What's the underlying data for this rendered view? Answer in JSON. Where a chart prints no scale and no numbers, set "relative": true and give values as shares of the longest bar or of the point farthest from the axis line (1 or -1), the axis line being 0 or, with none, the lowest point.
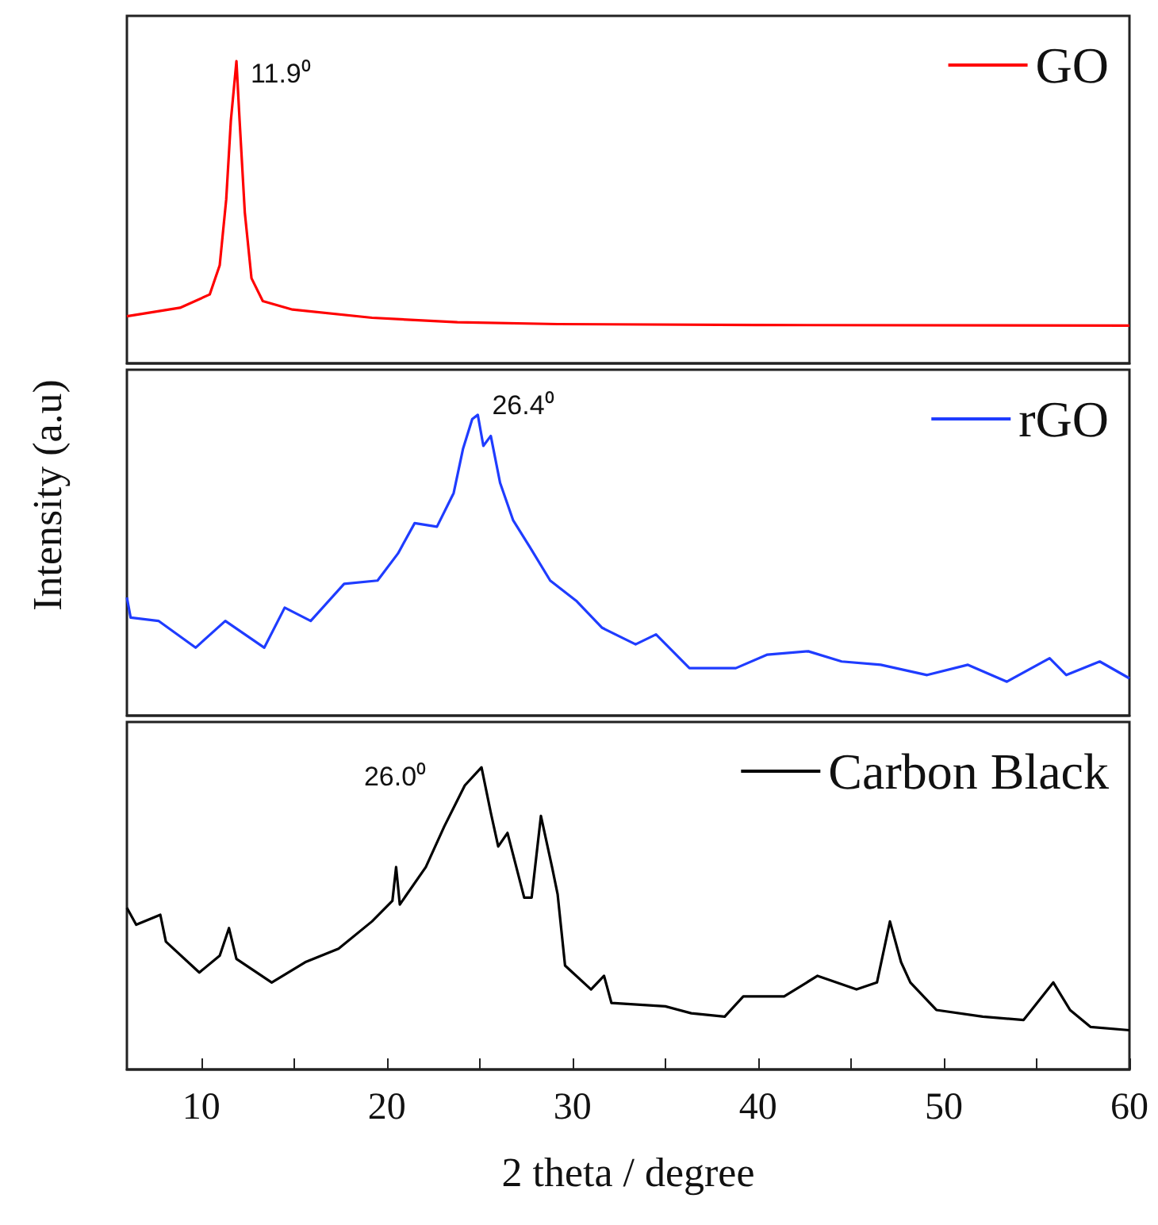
{
  "chart_data": [
    {
      "type": "line",
      "relative": true,
      "xlim": [
        6,
        60
      ],
      "tick_labels": false,
      "legend": "top right",
      "marker": "none",
      "line_style": "solid",
      "series": [
        {
          "name": "GO",
          "color": "#ff0000",
          "x": [
            6.0,
            8.86,
            10.46,
            11.0,
            11.35,
            11.6,
            11.9,
            12.07,
            12.35,
            12.71,
            13.32,
            14.92,
            19.2,
            23.8,
            29.2,
            39.9,
            60
          ],
          "values": [
            0.156,
            0.184,
            0.228,
            0.325,
            0.543,
            0.804,
            1.0,
            0.804,
            0.5,
            0.282,
            0.206,
            0.178,
            0.151,
            0.136,
            0.13,
            0.127,
            0.125
          ]
        }
      ],
      "annotations": [
        {
          "text": "11.9⁰",
          "x": 11.9,
          "y": 1.0
        }
      ]
    },
    {
      "type": "line",
      "relative": true,
      "xlim": [
        6,
        60
      ],
      "tick_labels": false,
      "legend": "top right",
      "marker": "none",
      "line_style": "solid",
      "ylabel": "Intensity (a.u)",
      "series": [
        {
          "name": "rGO",
          "color": "#1f3cff",
          "x": [
            6.0,
            6.2,
            7.7,
            9.7,
            11.3,
            13.4,
            14.5,
            15.9,
            17.7,
            19.5,
            20.6,
            21.5,
            22.7,
            23.6,
            24.1,
            24.6,
            24.9,
            25.2,
            25.6,
            26.1,
            26.8,
            27.7,
            28.8,
            30.2,
            31.6,
            33.4,
            34.5,
            36.3,
            38.8,
            40.5,
            42.7,
            44.5,
            46.6,
            49.1,
            51.3,
            53.4,
            55.7,
            56.6,
            58.4,
            60
          ],
          "values": [
            0.393,
            0.326,
            0.315,
            0.226,
            0.315,
            0.226,
            0.359,
            0.315,
            0.438,
            0.449,
            0.539,
            0.64,
            0.628,
            0.74,
            0.886,
            0.986,
            1.0,
            0.897,
            0.93,
            0.774,
            0.65,
            0.561,
            0.449,
            0.382,
            0.292,
            0.237,
            0.27,
            0.158,
            0.158,
            0.203,
            0.214,
            0.18,
            0.169,
            0.135,
            0.169,
            0.113,
            0.191,
            0.135,
            0.18,
            0.124
          ]
        }
      ],
      "annotations": [
        {
          "text": "26.4⁰",
          "x": 24.9,
          "y": 1.0
        }
      ]
    },
    {
      "type": "line",
      "relative": true,
      "xlim": [
        6,
        60
      ],
      "tick_labels": "x",
      "legend": "top right",
      "marker": "none",
      "line_style": "solid",
      "xlabel": "2 theta / degree",
      "xticks": [
        10,
        {
          "value": 15,
          "label": null
        },
        20,
        {
          "value": 25,
          "label": null
        },
        30,
        {
          "value": 35,
          "label": null
        },
        40,
        {
          "value": 45,
          "label": null
        },
        50,
        {
          "value": 55,
          "label": null
        },
        60
      ],
      "series": [
        {
          "name": "Carbon Black",
          "color": "#000000",
          "x": [
            6.0,
            6.5,
            7.8,
            8.1,
            9.9,
            11.0,
            11.5,
            11.9,
            13.8,
            15.6,
            17.4,
            19.2,
            20.3,
            20.5,
            20.7,
            22.1,
            23.1,
            24.2,
            25.1,
            25.6,
            26.0,
            26.5,
            27.4,
            27.8,
            28.3,
            28.9,
            29.2,
            29.6,
            31.0,
            31.7,
            32.1,
            35.0,
            36.4,
            38.2,
            39.2,
            41.4,
            43.2,
            45.3,
            46.4,
            47.1,
            47.7,
            48.2,
            49.6,
            52.1,
            54.3,
            55.9,
            56.8,
            57.9,
            60
          ],
          "values": [
            0.535,
            0.479,
            0.512,
            0.423,
            0.321,
            0.377,
            0.468,
            0.366,
            0.288,
            0.355,
            0.4,
            0.49,
            0.558,
            0.67,
            0.546,
            0.67,
            0.805,
            0.94,
            1.0,
            0.85,
            0.738,
            0.783,
            0.569,
            0.569,
            0.839,
            0.67,
            0.58,
            0.344,
            0.265,
            0.31,
            0.22,
            0.209,
            0.186,
            0.175,
            0.242,
            0.242,
            0.31,
            0.265,
            0.288,
            0.49,
            0.355,
            0.288,
            0.197,
            0.175,
            0.164,
            0.288,
            0.197,
            0.141,
            0.13
          ]
        }
      ],
      "annotations": [
        {
          "text": "26.0⁰",
          "x": 25.1,
          "y": 1.0
        }
      ]
    }
  ]
}
